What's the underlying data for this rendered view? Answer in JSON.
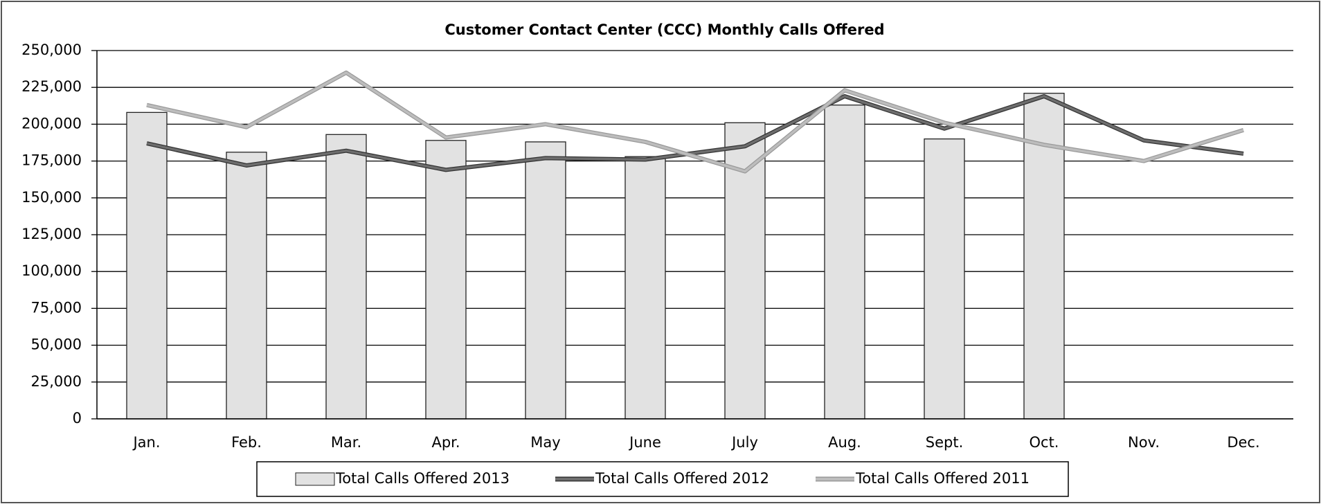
{
  "chart_data": {
    "type": "bar",
    "title": "Customer Contact Center (CCC) Monthly Calls Offered",
    "categories": [
      "Jan.",
      "Feb.",
      "Mar.",
      "Apr.",
      "May",
      "June",
      "July",
      "Aug.",
      "Sept.",
      "Oct.",
      "Nov.",
      "Dec."
    ],
    "series": [
      {
        "name": "Total Calls Offered 2013",
        "type": "bar",
        "color": "#e2e2e2",
        "values": [
          208000,
          181000,
          193000,
          189000,
          188000,
          178000,
          201000,
          213000,
          190000,
          221000,
          null,
          null
        ]
      },
      {
        "name": "Total Calls Offered 2012",
        "type": "line",
        "color": "#6e6e6e",
        "values": [
          187000,
          172000,
          182000,
          169000,
          177000,
          176000,
          185000,
          219000,
          197000,
          219000,
          189000,
          180000
        ]
      },
      {
        "name": "Total Calls Offered 2011",
        "type": "line",
        "color": "#bdbdbd",
        "values": [
          213000,
          198000,
          235000,
          191000,
          200000,
          188000,
          168000,
          223000,
          201000,
          186000,
          175000,
          196000
        ]
      }
    ],
    "ylim": [
      0,
      250000
    ],
    "yticks": [
      0,
      {
        "value": 25000,
        "label": "25,000"
      },
      {
        "value": 50000,
        "label": "50,000"
      },
      {
        "value": 75000,
        "label": "75,000"
      },
      {
        "value": 100000,
        "label": "100,000"
      },
      {
        "value": 125000,
        "label": "125,000"
      },
      {
        "value": 150000,
        "label": "150,000"
      },
      {
        "value": 175000,
        "label": "175,000"
      },
      {
        "value": 200000,
        "label": "200,000"
      },
      {
        "value": 225000,
        "label": "225,000"
      },
      {
        "value": 250000,
        "label": "250,000"
      }
    ],
    "grid": true,
    "legend": "bottom"
  }
}
